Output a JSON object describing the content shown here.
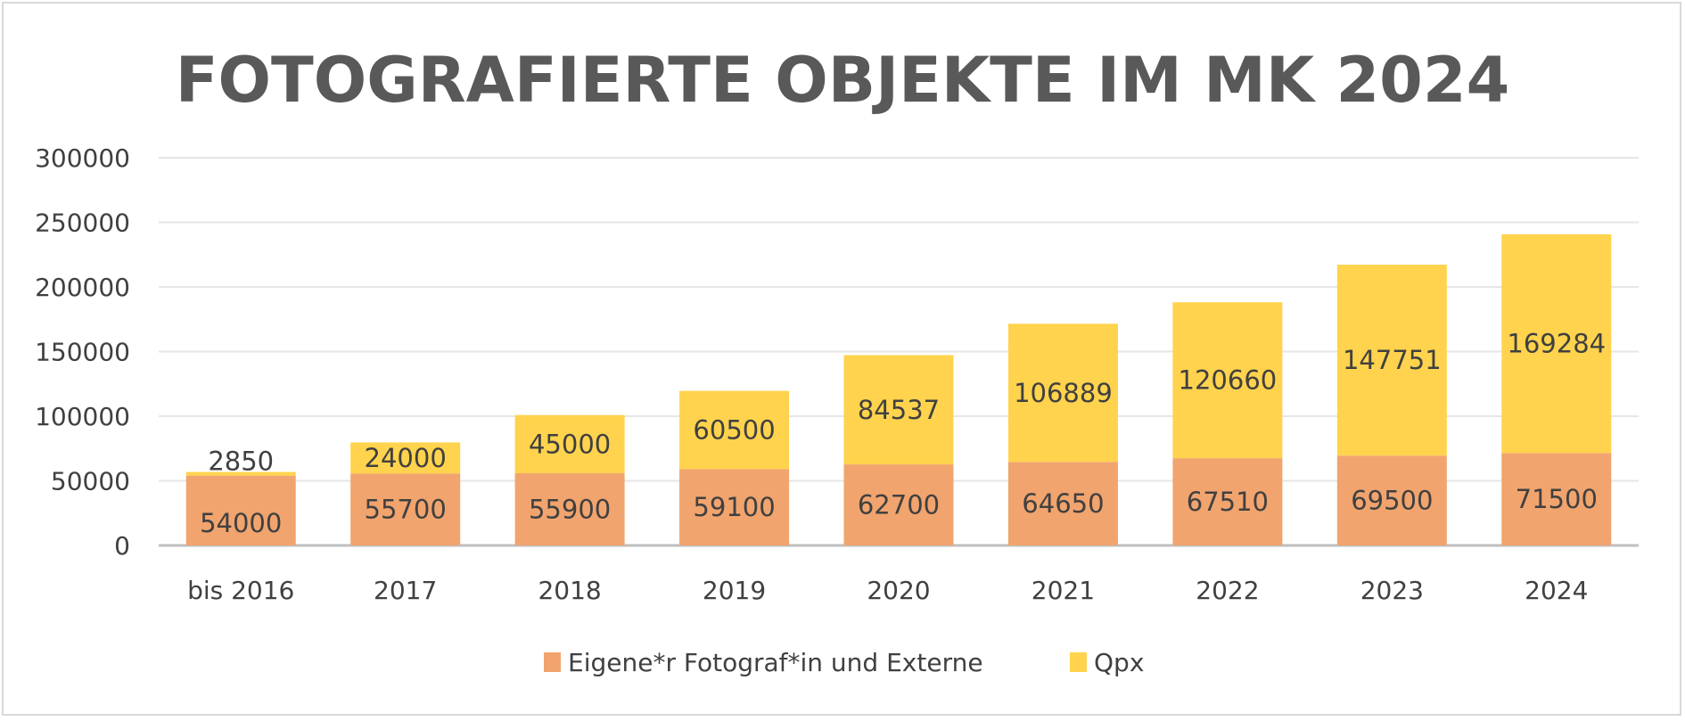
{
  "chart_data": {
    "type": "bar",
    "stacked": true,
    "title": "FOTOGRAFIERTE OBJEKTE IM MK 2024",
    "xlabel": "",
    "ylabel": "",
    "categories": [
      "bis 2016",
      "2017",
      "2018",
      "2019",
      "2020",
      "2021",
      "2022",
      "2023",
      "2024"
    ],
    "series": [
      {
        "name": "Eigene*r Fotograf*in und Externe",
        "color": "#F1A46E",
        "values": [
          54000,
          55700,
          55900,
          59100,
          62700,
          64650,
          67510,
          69500,
          71500
        ]
      },
      {
        "name": "Qpx",
        "color": "#FFD34D",
        "values": [
          2850,
          24000,
          45000,
          60500,
          84537,
          106889,
          120660,
          147751,
          169284
        ]
      }
    ],
    "ylim": [
      0,
      300000
    ],
    "yticks": [
      0,
      50000,
      100000,
      150000,
      200000,
      250000,
      300000
    ],
    "grid": true,
    "legend": "bottom",
    "data_labels": true
  }
}
